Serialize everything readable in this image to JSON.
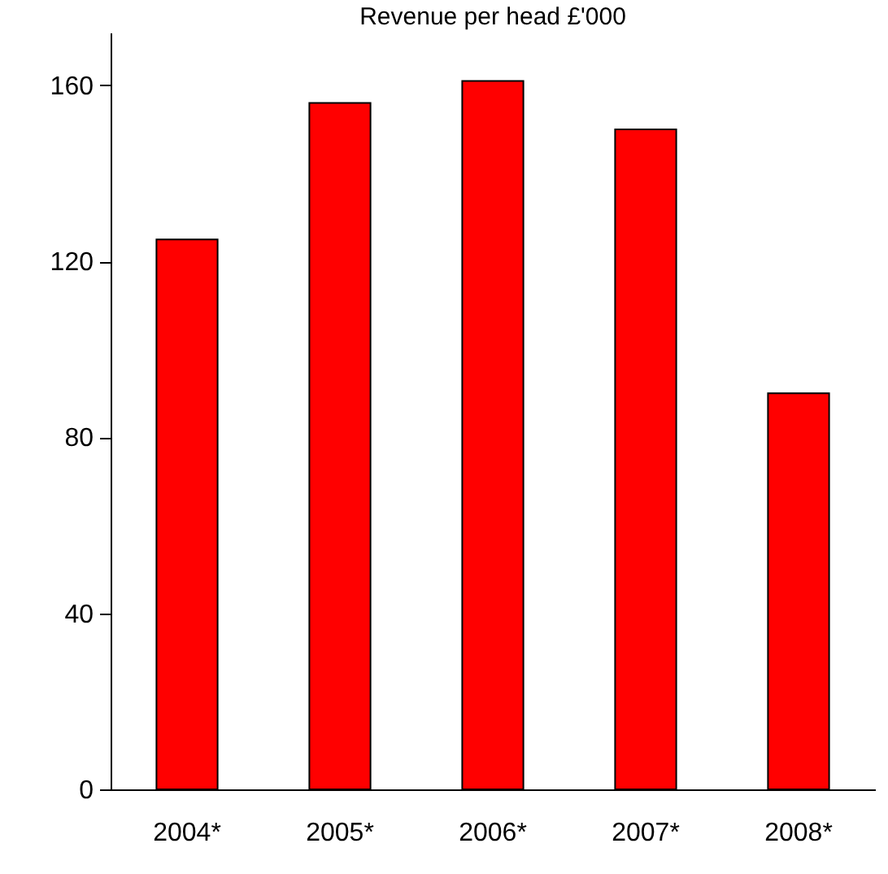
{
  "chart_data": {
    "type": "bar",
    "title": "Revenue per head £'000",
    "categories": [
      "2004*",
      "2005*",
      "2006*",
      "2007*",
      "2008*"
    ],
    "values": [
      125,
      156,
      161,
      150,
      90
    ],
    "color": "#ff0000",
    "ylim": [
      0,
      172
    ],
    "yticks": [
      0,
      40,
      80,
      120,
      160
    ],
    "grid": false
  }
}
